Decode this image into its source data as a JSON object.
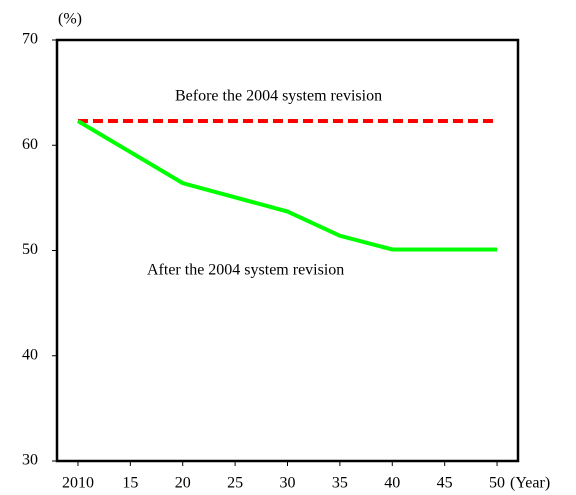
{
  "chart_data": {
    "type": "line",
    "y_unit_label": "(%)",
    "x_unit_label": "(Year)",
    "x": [
      2010,
      2020,
      2030,
      2035,
      2040,
      2050
    ],
    "series": [
      {
        "name": "Before the 2004 system revision",
        "color": "#ff0000",
        "dashed": true,
        "values": [
          62.3,
          62.3,
          62.3,
          62.3,
          62.3,
          62.3
        ]
      },
      {
        "name": "After the 2004 system revision",
        "color": "#00ff00",
        "dashed": false,
        "values": [
          62.3,
          56.4,
          53.7,
          51.4,
          50.1,
          50.1
        ]
      }
    ],
    "xlim": [
      2008,
      2052
    ],
    "xticks": [
      {
        "value": 2010,
        "label": "2010"
      },
      {
        "value": 2015,
        "label": "15"
      },
      {
        "value": 2020,
        "label": "20"
      },
      {
        "value": 2025,
        "label": "25"
      },
      {
        "value": 2030,
        "label": "30"
      },
      {
        "value": 2035,
        "label": "35"
      },
      {
        "value": 2040,
        "label": "40"
      },
      {
        "value": 2045,
        "label": "45"
      },
      {
        "value": 2050,
        "label": "50"
      }
    ],
    "ylim": [
      30,
      70
    ],
    "yticks": [
      30,
      40,
      50,
      60,
      70
    ],
    "grid": false
  }
}
